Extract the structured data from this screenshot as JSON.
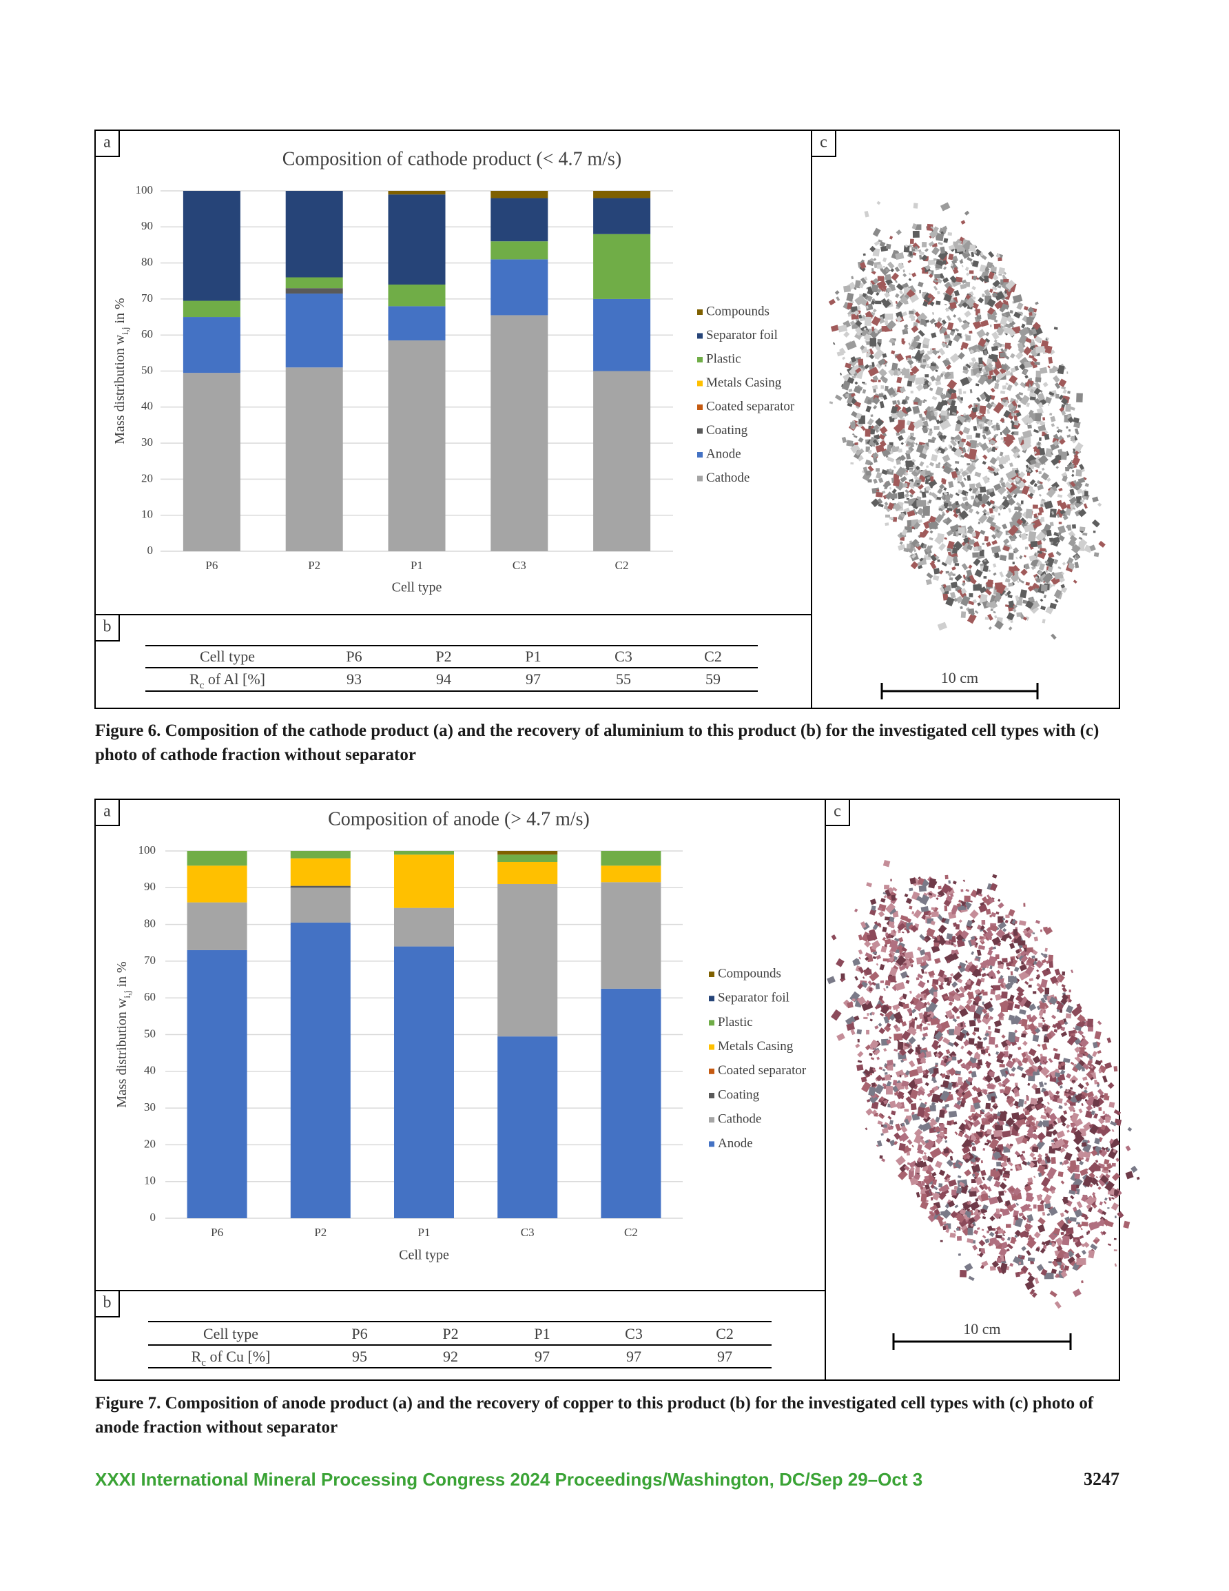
{
  "chart_data": [
    {
      "type": "bar",
      "stacked": true,
      "panel_label": "a",
      "title": "Composition of cathode product (< 4.7 m/s)",
      "y_label": {
        "text": "Mass distribution w",
        "subscript": "i,j",
        "suffix": " in %"
      },
      "x_label": "Cell type",
      "categories": [
        "P6",
        "P2",
        "P1",
        "C3",
        "C2"
      ],
      "ylim": [
        0,
        100
      ],
      "yticks": [
        0,
        10,
        20,
        30,
        40,
        50,
        60,
        70,
        80,
        90,
        100
      ],
      "grid": true,
      "series": [
        {
          "name": "Cathode",
          "color": "#a5a5a5",
          "values": [
            49.5,
            51,
            58.5,
            65.5,
            50
          ]
        },
        {
          "name": "Anode",
          "color": "#4472c4",
          "values": [
            15.5,
            20.5,
            9.5,
            15.5,
            20
          ]
        },
        {
          "name": "Coating",
          "color": "#595959",
          "values": [
            0,
            1.5,
            0,
            0,
            0
          ]
        },
        {
          "name": "Coated separator",
          "color": "#c55a11",
          "values": [
            0,
            0,
            0,
            0,
            0
          ]
        },
        {
          "name": "Metals Casing",
          "color": "#ffc000",
          "values": [
            0,
            0,
            0,
            0,
            0
          ]
        },
        {
          "name": "Plastic",
          "color": "#70ad47",
          "values": [
            4.5,
            3,
            6,
            5,
            18
          ]
        },
        {
          "name": "Separator foil",
          "color": "#264478",
          "values": [
            30.5,
            24,
            25,
            12,
            10
          ]
        },
        {
          "name": "Compounds",
          "color": "#7f6000",
          "values": [
            0,
            0,
            1,
            2,
            2
          ]
        }
      ]
    },
    {
      "type": "bar",
      "stacked": true,
      "panel_label": "a",
      "title": "Composition of anode (> 4.7 m/s)",
      "y_label": {
        "text": "Mass distribution w",
        "subscript": "i,j",
        "suffix": " in %"
      },
      "x_label": "Cell type",
      "categories": [
        "P6",
        "P2",
        "P1",
        "C3",
        "C2"
      ],
      "ylim": [
        0,
        100
      ],
      "yticks": [
        0,
        10,
        20,
        30,
        40,
        50,
        60,
        70,
        80,
        90,
        100
      ],
      "grid": true,
      "series": [
        {
          "name": "Anode",
          "color": "#4472c4",
          "values": [
            73,
            80.5,
            74,
            49.5,
            62.5
          ]
        },
        {
          "name": "Cathode",
          "color": "#a5a5a5",
          "values": [
            13,
            9.5,
            10.5,
            41.5,
            29
          ]
        },
        {
          "name": "Coating",
          "color": "#595959",
          "values": [
            0,
            0.5,
            0,
            0,
            0
          ]
        },
        {
          "name": "Coated separator",
          "color": "#c55a11",
          "values": [
            0,
            0,
            0,
            0,
            0
          ]
        },
        {
          "name": "Metals Casing",
          "color": "#ffc000",
          "values": [
            10,
            7.5,
            14.5,
            6,
            4.5
          ]
        },
        {
          "name": "Plastic",
          "color": "#70ad47",
          "values": [
            4,
            2,
            1,
            2,
            4
          ]
        },
        {
          "name": "Separator foil",
          "color": "#264478",
          "values": [
            0,
            0,
            0,
            0,
            0
          ]
        },
        {
          "name": "Compounds",
          "color": "#7f6000",
          "values": [
            0,
            0,
            0,
            1,
            0
          ]
        }
      ]
    }
  ],
  "figures": [
    {
      "table_label": "b",
      "table": {
        "header": [
          "Cell type",
          "P6",
          "P2",
          "P1",
          "C3",
          "C2"
        ],
        "row_label": {
          "symbol": "R",
          "subscript": "c",
          "text": " of Al [%]"
        },
        "row": [
          93,
          94,
          97,
          55,
          59
        ]
      },
      "photo_label": "c",
      "scale_label": "10 cm",
      "caption": "Figure 6. Composition of the cathode product (a) and the recovery of aluminium to this product (b) for the investigated cell types with (c) photo of cathode fraction without separator"
    },
    {
      "table_label": "b",
      "table": {
        "header": [
          "Cell type",
          "P6",
          "P2",
          "P1",
          "C3",
          "C2"
        ],
        "row_label": {
          "symbol": "R",
          "subscript": "c",
          "text": " of Cu [%]"
        },
        "row": [
          95,
          92,
          97,
          97,
          97
        ]
      },
      "photo_label": "c",
      "scale_label": "10 cm",
      "caption": "Figure 7. Composition of anode product (a) and the recovery of copper to this product (b) for the investigated cell types with (c) photo of anode fraction without separator"
    }
  ],
  "footer": {
    "text": "XXXI International Mineral Processing Congress 2024 Proceedings/Washington, DC/Sep 29–Oct 3",
    "page": "3247"
  }
}
